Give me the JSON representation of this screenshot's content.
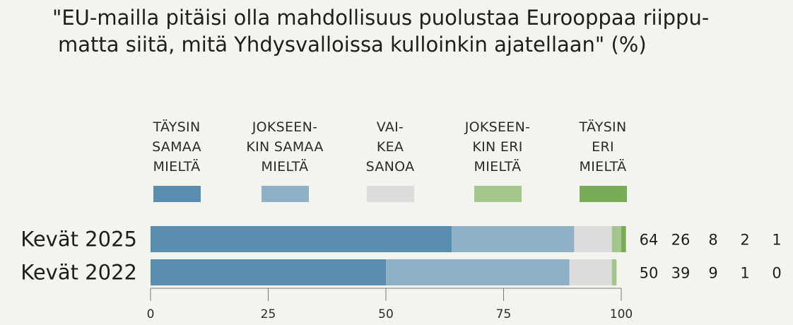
{
  "title_line1": "\"EU-mailla pitäisi olla mahdollisuus puolustaa Eurooppaa riippu-",
  "title_line2": "matta siitä, mitä Yhdysvalloissa kulloinkin ajatellaan\" (%)",
  "legend": [
    {
      "label": "TÄYSIN\nSAMAA\nMIELTÄ",
      "color": "#5a8eb0"
    },
    {
      "label": "JOKSEEN-\nKIN SAMAA\nMIELTÄ",
      "color": "#8fb1c6"
    },
    {
      "label": "VAI-\nKEA\nSANOA",
      "color": "#dddddd"
    },
    {
      "label": "JOKSEEN-\nKIN ERI\nMIELTÄ",
      "color": "#a3c68c"
    },
    {
      "label": "TÄYSIN\nERI\nMIELTÄ",
      "color": "#79ab58"
    }
  ],
  "chart_data": {
    "type": "bar",
    "orientation": "horizontal",
    "stacked": true,
    "title": "\"EU-mailla pitäisi olla mahdollisuus puolustaa Eurooppaa riippumatta siitä, mitä Yhdysvalloissa kulloinkin ajatellaan\" (%)",
    "categories": [
      "Kevät 2025",
      "Kevät 2022"
    ],
    "series": [
      {
        "name": "TÄYSIN SAMAA MIELTÄ",
        "values": [
          64,
          50
        ]
      },
      {
        "name": "JOKSEENKIN SAMAA MIELTÄ",
        "values": [
          26,
          39
        ]
      },
      {
        "name": "VAIKEA SANOA",
        "values": [
          8,
          9
        ]
      },
      {
        "name": "JOKSEENKIN ERI MIELTÄ",
        "values": [
          2,
          1
        ]
      },
      {
        "name": "TÄYSIN ERI MIELTÄ",
        "values": [
          1,
          0
        ]
      }
    ],
    "xlim": [
      0,
      100
    ],
    "xticks": [
      "0",
      "25",
      "50",
      "75",
      "100"
    ],
    "value_labels": [
      [
        "64",
        "26",
        "8",
        "2",
        "1"
      ],
      [
        "50",
        "39",
        "9",
        "1",
        "0"
      ]
    ],
    "xlabel": "",
    "ylabel": ""
  }
}
